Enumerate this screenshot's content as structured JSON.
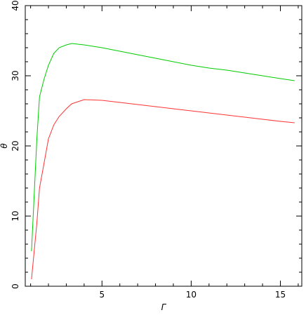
{
  "chart_data": {
    "type": "line",
    "title": "",
    "xlabel": "Γ",
    "ylabel": "θ",
    "xlim": [
      0.7,
      16.2
    ],
    "ylim": [
      0,
      40
    ],
    "x_major_ticks": [
      5,
      10,
      15
    ],
    "x_minor_step": 1,
    "y_major_ticks": [
      0,
      10,
      20,
      30,
      40
    ],
    "y_minor_step": 2,
    "grid": false,
    "series": [
      {
        "color": "#00cc00",
        "x": [
          1.05,
          1.2,
          1.35,
          1.5,
          1.75,
          2.0,
          2.3,
          2.6,
          3.0,
          3.3,
          4.0,
          5.0,
          6.0,
          7.0,
          8.0,
          9.0,
          10.0,
          11.0,
          12.0,
          13.0,
          14.0,
          15.0,
          15.8
        ],
        "values": [
          5.0,
          13.0,
          21.0,
          27.0,
          29.5,
          31.5,
          33.2,
          34.0,
          34.4,
          34.6,
          34.4,
          34.0,
          33.5,
          33.0,
          32.5,
          32.0,
          31.5,
          31.1,
          30.8,
          30.4,
          30.0,
          29.6,
          29.3
        ]
      },
      {
        "color": "#ff3333",
        "x": [
          1.05,
          1.2,
          1.35,
          1.5,
          1.75,
          2.0,
          2.3,
          2.6,
          3.0,
          3.3,
          4.0,
          5.0,
          6.0,
          7.0,
          8.0,
          9.0,
          10.0,
          11.0,
          12.0,
          13.0,
          14.0,
          15.0,
          15.8
        ],
        "values": [
          1.0,
          5.0,
          9.0,
          14.0,
          17.5,
          21.0,
          23.0,
          24.2,
          25.3,
          26.0,
          26.6,
          26.5,
          26.2,
          25.9,
          25.6,
          25.3,
          25.0,
          24.7,
          24.4,
          24.1,
          23.8,
          23.5,
          23.3
        ]
      }
    ]
  }
}
